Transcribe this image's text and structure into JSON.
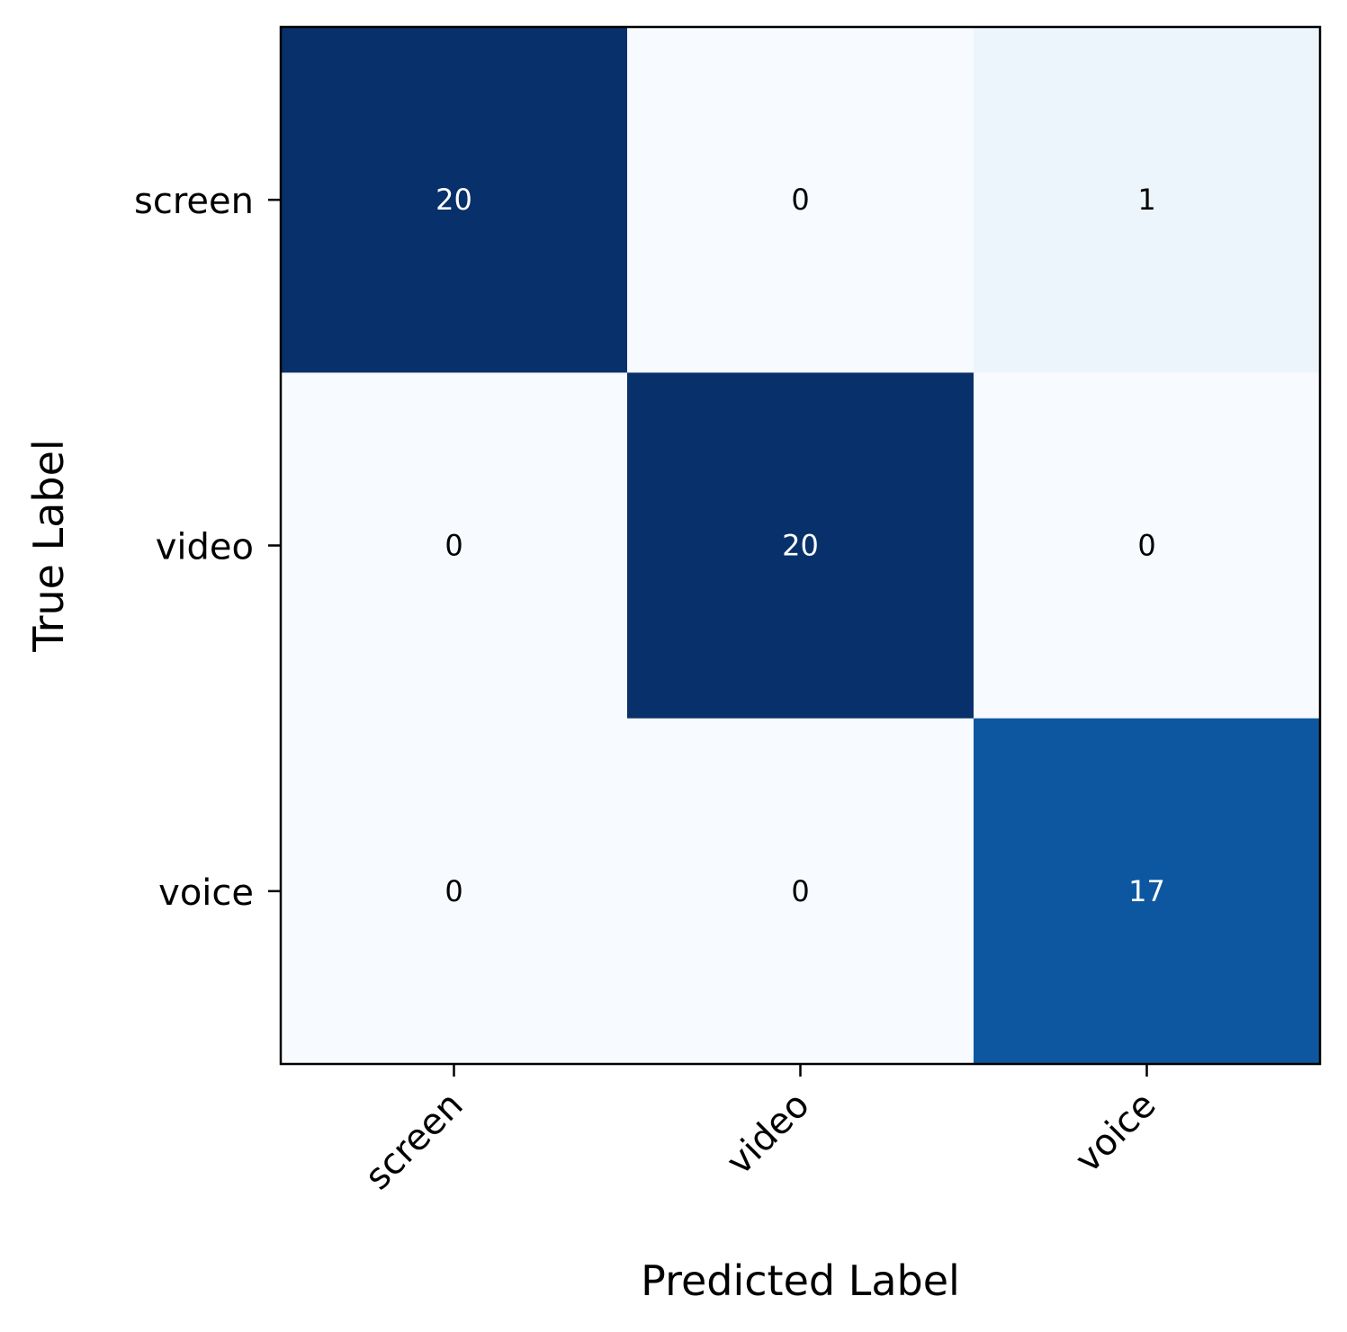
{
  "chart_data": {
    "type": "heatmap",
    "title": "",
    "xlabel": "Predicted Label",
    "ylabel": "True Label",
    "x_categories": [
      "screen",
      "video",
      "voice"
    ],
    "y_categories": [
      "screen",
      "video",
      "voice"
    ],
    "matrix": [
      [
        20,
        0,
        1
      ],
      [
        0,
        20,
        0
      ],
      [
        0,
        0,
        17
      ]
    ],
    "colormap": "Blues",
    "vmin": 0,
    "vmax": 20,
    "colorbar": false,
    "grid": false
  }
}
